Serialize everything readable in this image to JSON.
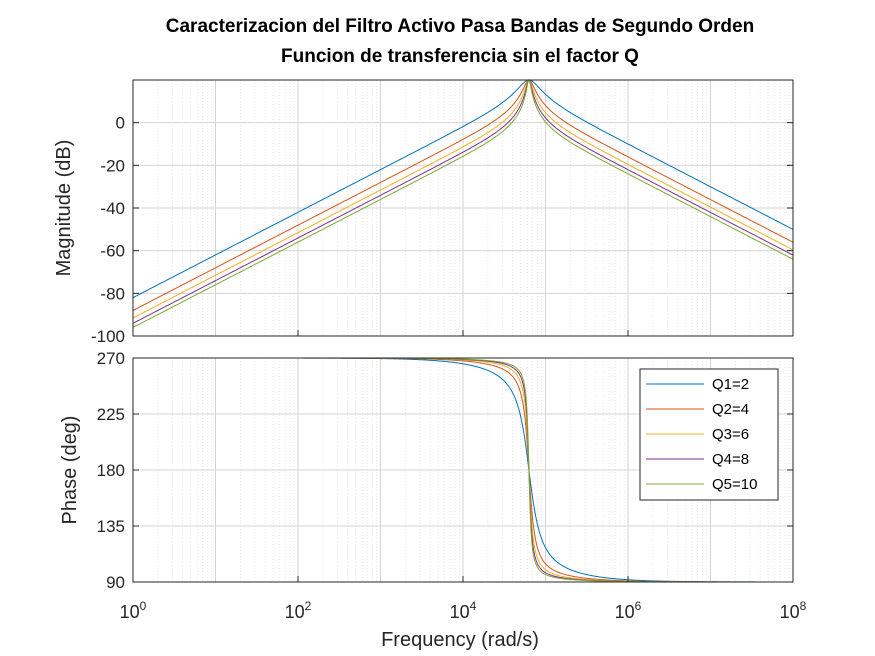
{
  "chart_data": {
    "type": "line",
    "title": "Caracterizacion del Filtro Activo Pasa Bandas de Segundo Orden",
    "subtitle": "Funcion de transferencia sin el factor Q",
    "xlabel": "Frequency  (rad/s)",
    "xscale": "log",
    "xlim": [
      1,
      100000000
    ],
    "x_ticks": [
      "10^0",
      "10^2",
      "10^4",
      "10^6",
      "10^8"
    ],
    "grid": true,
    "center_frequency": 63000,
    "peak_magnitude_db": 20,
    "legend_position": "upper-right of phase plot",
    "magnitude_panel": {
      "ylabel": "Magnitude (dB)",
      "ylim": [
        -100,
        20
      ],
      "y_ticks": [
        0,
        -20,
        -40,
        -60,
        -80,
        -100
      ]
    },
    "phase_panel": {
      "ylabel": "Phase (deg)",
      "ylim": [
        90,
        270
      ],
      "y_ticks": [
        270,
        225,
        180,
        135,
        90
      ]
    },
    "series": [
      {
        "name": "Q1=2",
        "Q": 2,
        "color": "#0072BD"
      },
      {
        "name": "Q2=4",
        "Q": 4,
        "color": "#D95319"
      },
      {
        "name": "Q3=6",
        "Q": 6,
        "color": "#EDB120"
      },
      {
        "name": "Q4=8",
        "Q": 8,
        "color": "#7E2F8E"
      },
      {
        "name": "Q5=10",
        "Q": 10,
        "color": "#77AC30"
      }
    ]
  }
}
